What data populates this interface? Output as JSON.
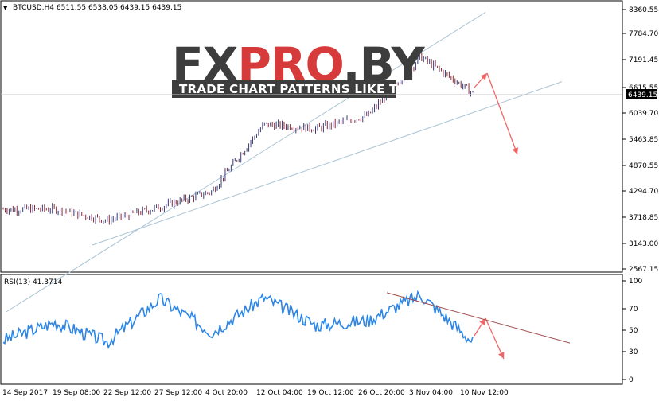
{
  "header": {
    "symbol_arrow": "▼",
    "quote": "BTCUSD,H4  6511.55 6538.05 6439.15 6439.15"
  },
  "watermark": {
    "main": "FXPRO.BY",
    "tagline": "TRADE CHART PATTERNS LIKE THE PROS"
  },
  "price_axis": {
    "ticks": [
      "8360.55",
      "7784.70",
      "7191.45",
      "6615.55",
      "6039.70",
      "5463.85",
      "4870.55",
      "4294.70",
      "3718.85",
      "3143.00",
      "2567.15"
    ],
    "current_label": "6439.15"
  },
  "rsi": {
    "label": "RSI(13) 41.3714",
    "ticks": [
      "100",
      "70",
      "50",
      "30",
      "0"
    ]
  },
  "time_axis": {
    "ticks": [
      "14 Sep 2017",
      "19 Sep 08:00",
      "22 Sep 12:00",
      "27 Sep 12:00",
      "4 Oct 20:00",
      "12 Oct 04:00",
      "19 Oct 12:00",
      "26 Oct 20:00",
      "3 Nov 04:00",
      "10 Nov 12:00"
    ]
  },
  "colors": {
    "bull": "#3a3a78",
    "bear": "#8a2a3a",
    "channel": "#aac4d6",
    "rsi_line": "#2d86e6",
    "rsi_trend": "#a05050",
    "arrow": "#f06666",
    "logo_dark": "#3d3d3d",
    "logo_red": "#d63a3a"
  },
  "chart_data": [
    {
      "type": "candlestick",
      "title": "BTCUSD,H4",
      "ohlc_last": {
        "open": 6511.55,
        "high": 6538.05,
        "low": 6439.15,
        "close": 6439.15
      },
      "ylim": [
        2567.15,
        8360.55
      ],
      "x": [
        "14 Sep 2017",
        "19 Sep 08:00",
        "22 Sep 12:00",
        "27 Sep 12:00",
        "4 Oct 20:00",
        "12 Oct 04:00",
        "19 Oct 12:00",
        "26 Oct 20:00",
        "3 Nov 04:00",
        "10 Nov 12:00"
      ],
      "close_approx": [
        3900,
        3900,
        3650,
        3950,
        4300,
        5800,
        5700,
        6000,
        7300,
        6500
      ],
      "channel": {
        "upper": [
          4100,
          8300
        ],
        "lower": [
          3100,
          6750
        ]
      }
    },
    {
      "type": "line",
      "title": "RSI(13) 41.3714",
      "ylim": [
        0,
        100
      ],
      "levels": [
        70,
        50,
        30
      ],
      "x": [
        "14 Sep 2017",
        "19 Sep 08:00",
        "22 Sep 12:00",
        "27 Sep 12:00",
        "4 Oct 20:00",
        "12 Oct 04:00",
        "19 Oct 12:00",
        "26 Oct 20:00",
        "3 Nov 04:00",
        "10 Nov 12:00"
      ],
      "values_approx": [
        40,
        58,
        38,
        82,
        48,
        83,
        55,
        60,
        86,
        38
      ]
    }
  ]
}
